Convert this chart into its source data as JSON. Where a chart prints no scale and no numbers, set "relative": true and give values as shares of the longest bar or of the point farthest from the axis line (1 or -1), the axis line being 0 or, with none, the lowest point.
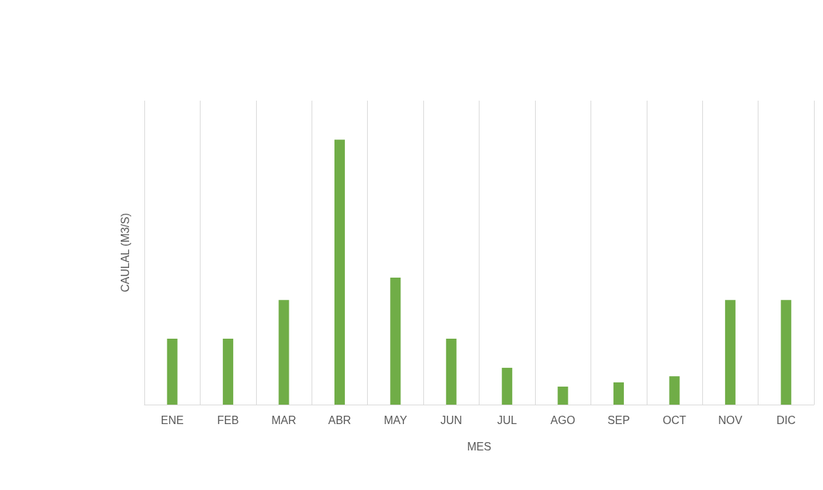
{
  "chart_data": {
    "type": "bar",
    "relative": true,
    "xlabel": "MES",
    "ylabel": "CAULAL (M3/S)",
    "categories": [
      "ENE",
      "FEB",
      "MAR",
      "ABR",
      "MAY",
      "JUN",
      "JUL",
      "AGO",
      "SEP",
      "OCT",
      "NOV",
      "DIC"
    ],
    "values": [
      0.249,
      0.249,
      0.395,
      1,
      0.479,
      0.249,
      0.139,
      0.068,
      0.084,
      0.107,
      0.395,
      0.395
    ],
    "color": "#70ad47",
    "grid": "x"
  }
}
